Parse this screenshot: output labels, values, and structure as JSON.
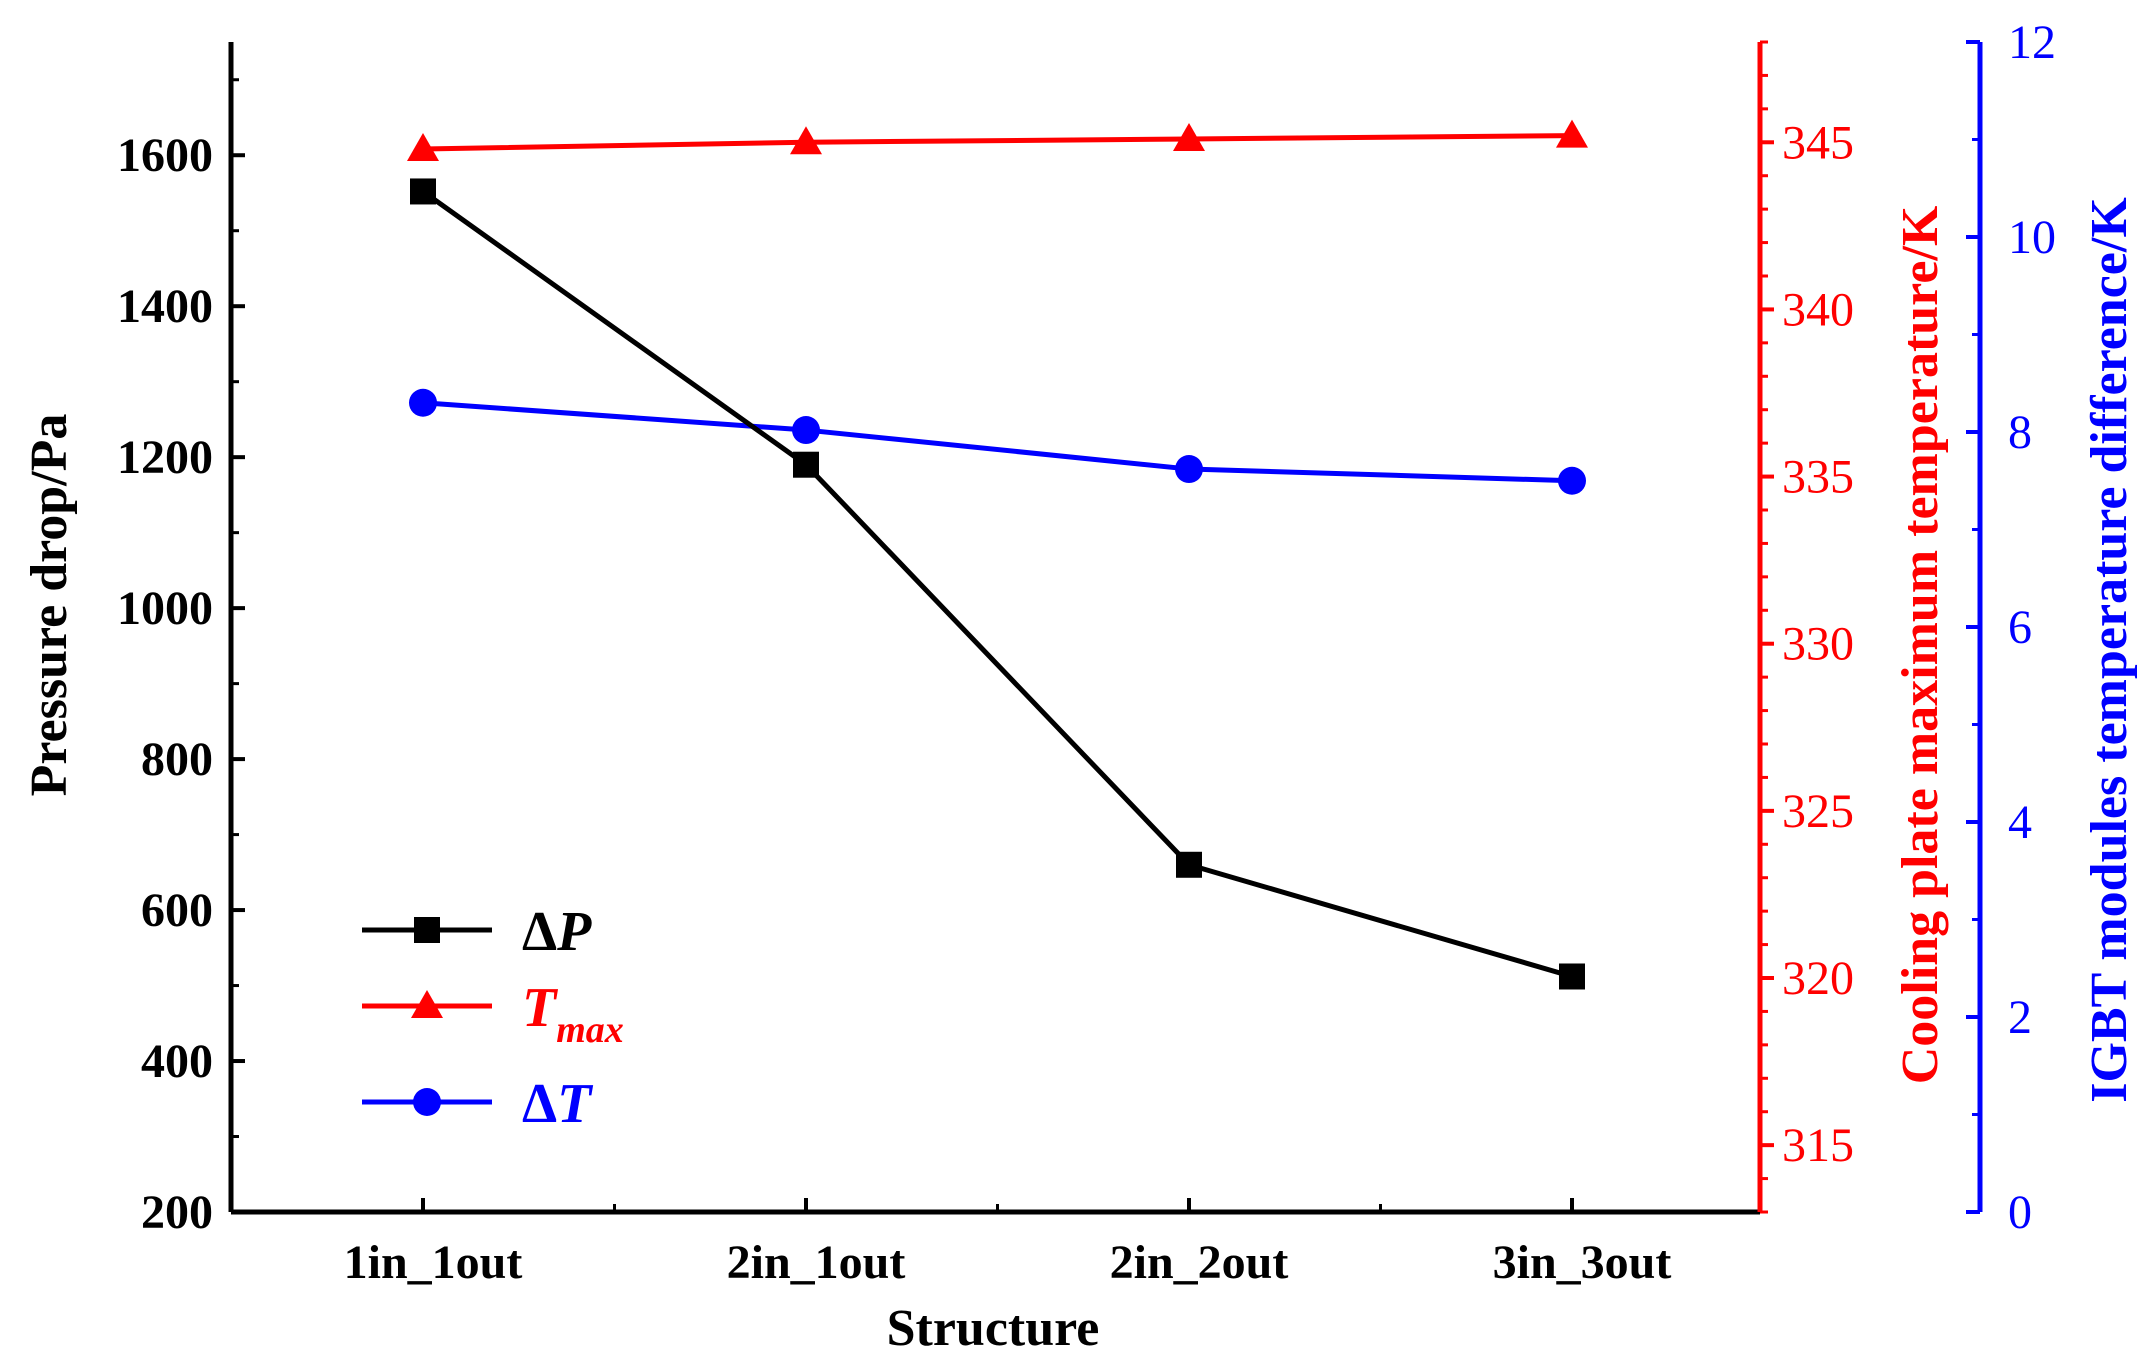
{
  "chart_data": {
    "type": "line",
    "categories": [
      "1in_1out",
      "2in_1out",
      "2in_2out",
      "3in_3out"
    ],
    "xlabel": "Structure",
    "series": [
      {
        "name": "ΔP",
        "legend_main": "Δ",
        "legend_italic": "P",
        "legend_sub": "",
        "values": [
          1552,
          1190,
          660,
          512
        ],
        "axis": "left",
        "color": "#000000",
        "marker": "square"
      },
      {
        "name": "Tmax",
        "legend_main": "",
        "legend_italic": "T",
        "legend_sub": "max",
        "values": [
          344.8,
          345.0,
          345.1,
          345.2
        ],
        "axis": "right1",
        "color": "#ff0000",
        "marker": "triangle"
      },
      {
        "name": "ΔT",
        "legend_main": "Δ",
        "legend_italic": "T",
        "legend_sub": "",
        "values": [
          8.3,
          8.02,
          7.62,
          7.5
        ],
        "axis": "right2",
        "color": "#0000ff",
        "marker": "circle"
      }
    ],
    "axes": {
      "left": {
        "label": "Pressure drop/Pa",
        "range": [
          200,
          1750
        ],
        "ticks": [
          200,
          400,
          600,
          800,
          1000,
          1200,
          1400,
          1600
        ],
        "tick_labels": [
          "200",
          "400",
          "600",
          "800",
          "1000",
          "1200",
          "1400",
          "1600"
        ],
        "color": "#000000"
      },
      "right1": {
        "label": "Cooling plate maximum temperature/K",
        "range": [
          313,
          348
        ],
        "ticks": [
          315,
          320,
          325,
          330,
          335,
          340,
          345
        ],
        "tick_labels": [
          "315",
          "320",
          "325",
          "330",
          "335",
          "340",
          "345"
        ],
        "color": "#ff0000"
      },
      "right2": {
        "label": "IGBT modules temperature difference/K",
        "range": [
          0,
          12
        ],
        "ticks": [
          0,
          2,
          4,
          6,
          8,
          10,
          12
        ],
        "tick_labels": [
          "0",
          "2",
          "4",
          "6",
          "8",
          "10",
          "12"
        ],
        "color": "#0000ff"
      }
    },
    "legend_position": "bottom-left",
    "grid": false
  }
}
